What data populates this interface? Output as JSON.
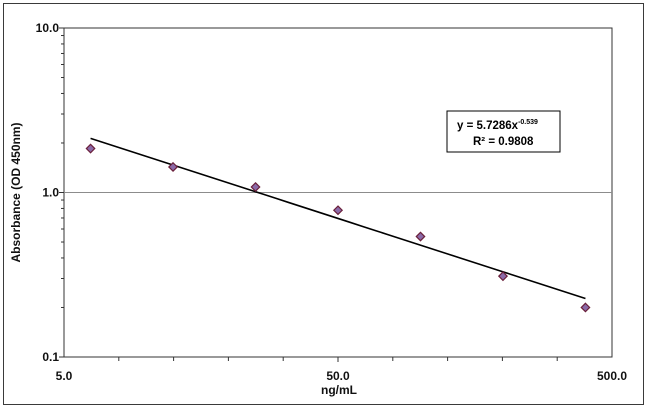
{
  "chart_data": {
    "type": "scatter",
    "x_scale": "log",
    "y_scale": "log",
    "xlabel": "ng/mL",
    "ylabel": "Absorbance (OD 450nm)",
    "xlim": [
      5.0,
      500.0
    ],
    "ylim": [
      0.1,
      10.0
    ],
    "x_tick_labels": [
      "5.0",
      "50.0",
      "500.0"
    ],
    "y_tick_labels": [
      "10.0",
      "1.0",
      "0.1"
    ],
    "grid": "horizontal major at 1.0",
    "points": [
      {
        "x": 6.25,
        "y": 1.85
      },
      {
        "x": 12.5,
        "y": 1.43
      },
      {
        "x": 25.0,
        "y": 1.08
      },
      {
        "x": 50.0,
        "y": 0.78
      },
      {
        "x": 100.0,
        "y": 0.54
      },
      {
        "x": 200.0,
        "y": 0.31
      },
      {
        "x": 400.0,
        "y": 0.2
      }
    ],
    "trendline": {
      "type": "power",
      "coefficient": 5.7286,
      "exponent": -0.539,
      "x_range": [
        6.25,
        400.0
      ]
    },
    "annotation": {
      "equation_main": "y = 5.7286x",
      "equation_exponent": "-0.539",
      "r_squared": "R² = 0.9808",
      "placement": "upper-right"
    },
    "colors": {
      "marker_fill": "#8b6aa8",
      "marker_stroke": "#6a1f3a",
      "trendline": "#000000",
      "gridline": "#8c8c8c",
      "axis": "#333333"
    }
  }
}
